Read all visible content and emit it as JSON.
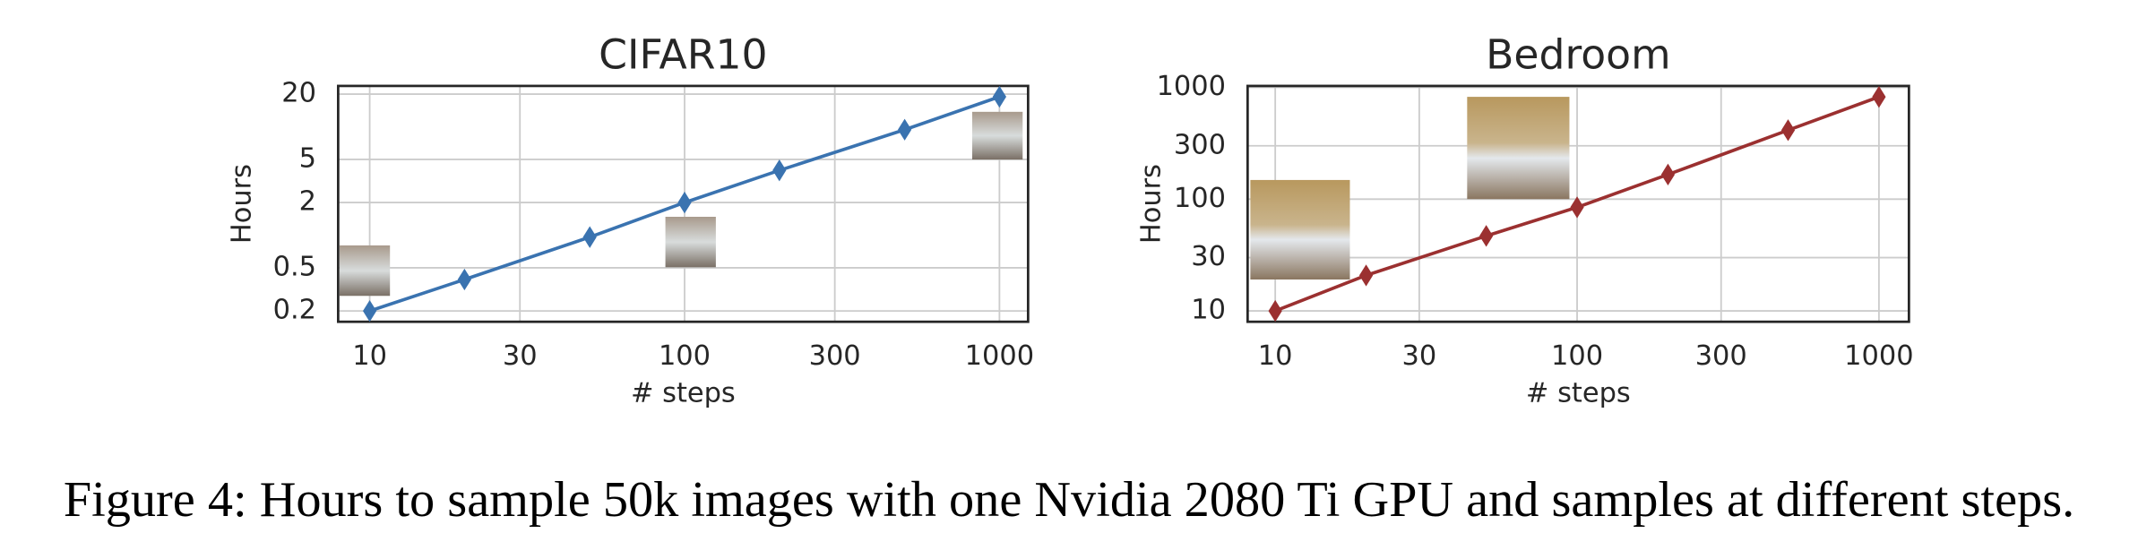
{
  "chart_data": [
    {
      "type": "line",
      "title": "CIFAR10",
      "xlabel": "# steps",
      "ylabel": "Hours",
      "x": [
        10,
        20,
        50,
        100,
        200,
        500,
        1000
      ],
      "values": [
        0.2,
        0.39,
        0.96,
        2,
        3.96,
        9.4,
        18.9
      ],
      "color": "#3a73b0",
      "marker": "diamond",
      "xscale": "log",
      "yscale": "log",
      "xlim": [
        7.94,
        1233
      ],
      "ylim": [
        0.159,
        23.8
      ],
      "xticks": [
        10,
        30,
        100,
        300,
        1000
      ],
      "yticks": [
        0.2,
        0.5,
        2,
        5,
        20
      ],
      "grid": true
    },
    {
      "type": "line",
      "title": "Bedroom",
      "xlabel": "# steps",
      "ylabel": "Hours",
      "x": [
        10,
        20,
        50,
        100,
        200,
        500,
        1000
      ],
      "values": [
        10,
        20.8,
        46.9,
        84.5,
        166,
        414,
        822
      ],
      "color": "#9b3030",
      "marker": "diamond",
      "xscale": "log",
      "yscale": "log",
      "xlim": [
        8.1,
        1257
      ],
      "ylim": [
        8,
        1030
      ],
      "xticks": [
        10,
        30,
        100,
        300,
        1000
      ],
      "yticks": [
        10,
        30,
        100,
        300,
        1000
      ],
      "grid": true
    }
  ],
  "caption": "Figure 4: Hours to sample 50k images with one Nvidia 2080 Ti GPU and samples at different steps."
}
